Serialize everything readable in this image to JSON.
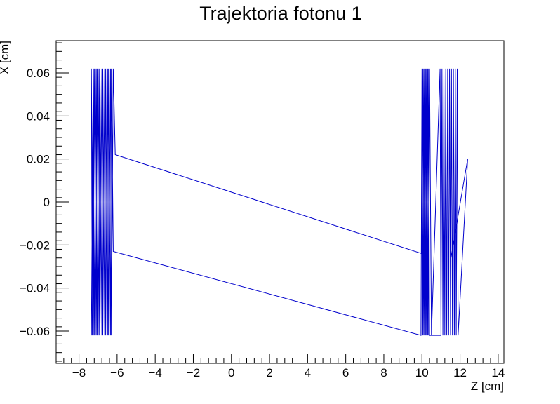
{
  "chart_data": {
    "type": "line",
    "title": "Trajektoria fotonu 1",
    "xlabel": "Z [cm]",
    "ylabel": "X [cm]",
    "xlim": [
      -9.2,
      14.3
    ],
    "ylim": [
      -0.075,
      0.075
    ],
    "xticks": [
      -8,
      -6,
      -4,
      -2,
      0,
      2,
      4,
      6,
      8,
      10,
      12,
      14
    ],
    "xtick_labels": [
      "−8",
      "−6",
      "−4",
      "−2",
      "0",
      "2",
      "4",
      "6",
      "8",
      "10",
      "12",
      "14"
    ],
    "yticks": [
      -0.06,
      -0.04,
      -0.02,
      0,
      0.02,
      0.04,
      0.06
    ],
    "ytick_labels": [
      "−0.06",
      "−0.04",
      "−0.02",
      "0",
      "0.02",
      "0.04",
      "0.06"
    ],
    "grid": false,
    "series": [
      {
        "color": "#0000cc",
        "x": [
          -7.35,
          -7.25,
          -7.2,
          -7.1,
          -7.05,
          -6.95,
          -6.9,
          -6.8,
          -6.75,
          -6.65,
          -6.6,
          -6.5,
          -6.45,
          -6.35,
          -6.3,
          -6.2,
          -6.1,
          10.0,
          10.05,
          10.1,
          10.15,
          10.2,
          10.25,
          10.3,
          10.35,
          10.4,
          11.0,
          11.05,
          11.1,
          11.15,
          11.2,
          11.25,
          11.3,
          11.35,
          11.4,
          11.45,
          11.5,
          11.55,
          11.6,
          11.65,
          11.7,
          11.75,
          11.8,
          11.85,
          11.9,
          12.4,
          11.5,
          11.45,
          11.4,
          11.35,
          11.3,
          11.25,
          11.2,
          11.15,
          11.1,
          11.05,
          11.0,
          10.95,
          10.5,
          10.4,
          10.35,
          10.3,
          10.25,
          10.2,
          10.15,
          10.1,
          10.05,
          10.0,
          9.95,
          -6.2,
          -6.3,
          -6.35,
          -6.45,
          -6.5,
          -6.6,
          -6.65,
          -6.75,
          -6.8,
          -6.9,
          -6.95,
          -7.05,
          -7.1,
          -7.2,
          -7.25,
          -7.35,
          -7.3
        ],
        "y": [
          -0.062,
          0.062,
          -0.062,
          0.062,
          -0.062,
          0.062,
          -0.062,
          0.062,
          -0.062,
          0.062,
          -0.062,
          0.062,
          -0.062,
          0.062,
          -0.062,
          0.062,
          0.022,
          -0.024,
          0.062,
          -0.062,
          0.062,
          -0.062,
          0.062,
          -0.062,
          0.062,
          -0.062,
          -0.062,
          0.062,
          -0.062,
          0.062,
          -0.062,
          0.062,
          -0.062,
          0.062,
          -0.062,
          0.062,
          -0.062,
          0.062,
          -0.062,
          0.062,
          -0.062,
          0.062,
          -0.062,
          0.062,
          -0.062,
          0.02,
          -0.027,
          0.062,
          -0.062,
          0.062,
          -0.062,
          0.062,
          -0.062,
          0.062,
          -0.062,
          0.062,
          -0.062,
          0.062,
          -0.062,
          0.062,
          -0.062,
          0.062,
          -0.062,
          0.062,
          -0.062,
          0.062,
          -0.062,
          0.062,
          -0.062,
          -0.023,
          0.062,
          -0.062,
          0.062,
          -0.062,
          0.062,
          -0.062,
          0.062,
          -0.062,
          0.062,
          -0.062,
          0.062,
          -0.062,
          0.062,
          -0.062,
          0.062,
          -0.062
        ]
      }
    ]
  }
}
